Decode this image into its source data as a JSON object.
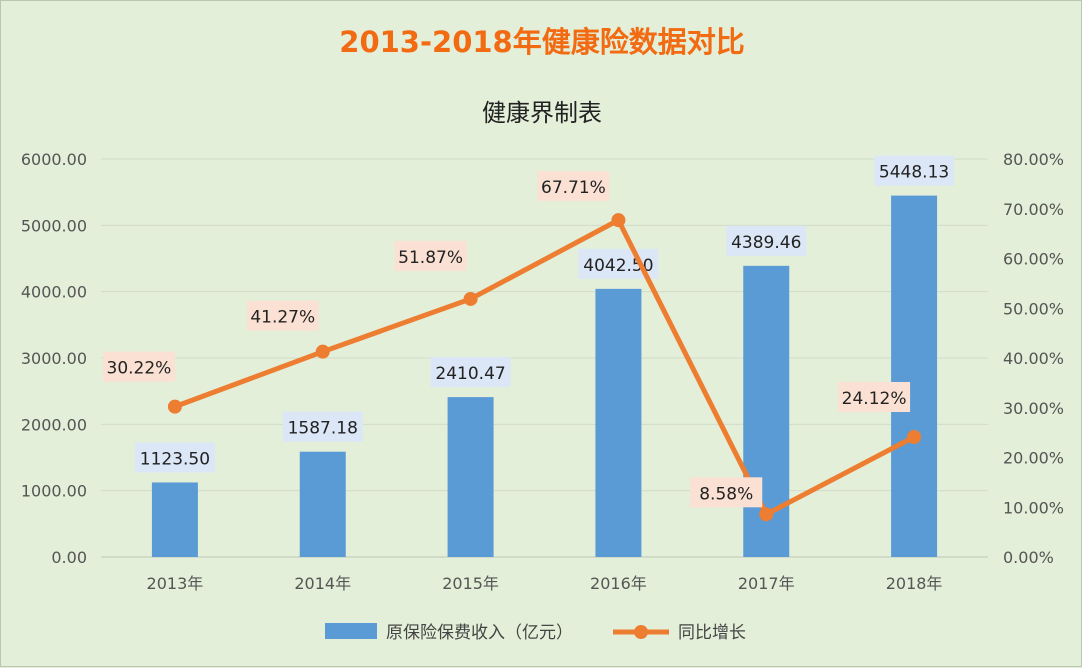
{
  "title": "2013-2018年健康险数据对比",
  "subtitle": "健康界制表",
  "colors": {
    "bar": "#5b9bd5",
    "line": "#ed7d31",
    "background": "#e3efd9",
    "title": "#f26b12",
    "bar_label_bg": "#dbe7f6",
    "line_label_bg": "#fbe1d4",
    "grid": "#d2dcc9"
  },
  "chart_data": {
    "type": "bar",
    "categories": [
      "2013年",
      "2014年",
      "2015年",
      "2016年",
      "2017年",
      "2018年"
    ],
    "series": [
      {
        "name": "原保险保费收入（亿元）",
        "type": "bar",
        "axis": "left",
        "values": [
          1123.5,
          1587.18,
          2410.47,
          4042.5,
          4389.46,
          5448.13
        ],
        "labels": [
          "1123.50",
          "1587.18",
          "2410.47",
          "4042.50",
          "4389.46",
          "5448.13"
        ]
      },
      {
        "name": "同比增长",
        "type": "line",
        "axis": "right",
        "values": [
          30.22,
          41.27,
          51.87,
          67.71,
          8.58,
          24.12
        ],
        "labels": [
          "30.22%",
          "41.27%",
          "51.87%",
          "67.71%",
          "8.58%",
          "24.12%"
        ]
      }
    ],
    "y_left": {
      "lim": [
        0,
        6000
      ],
      "ticks": [
        "0.00",
        "1000.00",
        "2000.00",
        "3000.00",
        "4000.00",
        "5000.00",
        "6000.00"
      ]
    },
    "y_right": {
      "lim": [
        0,
        80
      ],
      "ticks": [
        "0.00%",
        "10.00%",
        "20.00%",
        "30.00%",
        "40.00%",
        "50.00%",
        "60.00%",
        "70.00%",
        "80.00%"
      ]
    },
    "grid": true,
    "legend": "bottom"
  }
}
